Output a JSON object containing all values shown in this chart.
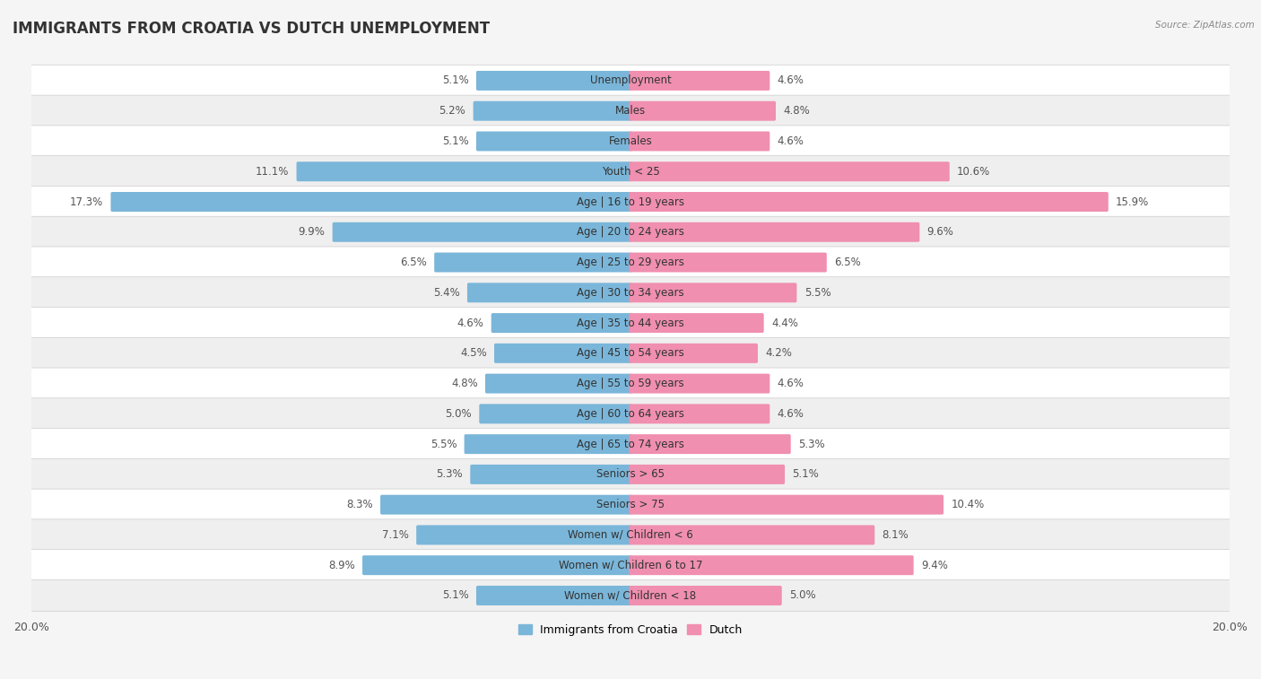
{
  "title": "IMMIGRANTS FROM CROATIA VS DUTCH UNEMPLOYMENT",
  "source": "Source: ZipAtlas.com",
  "categories": [
    "Unemployment",
    "Males",
    "Females",
    "Youth < 25",
    "Age | 16 to 19 years",
    "Age | 20 to 24 years",
    "Age | 25 to 29 years",
    "Age | 30 to 34 years",
    "Age | 35 to 44 years",
    "Age | 45 to 54 years",
    "Age | 55 to 59 years",
    "Age | 60 to 64 years",
    "Age | 65 to 74 years",
    "Seniors > 65",
    "Seniors > 75",
    "Women w/ Children < 6",
    "Women w/ Children 6 to 17",
    "Women w/ Children < 18"
  ],
  "croatia_values": [
    5.1,
    5.2,
    5.1,
    11.1,
    17.3,
    9.9,
    6.5,
    5.4,
    4.6,
    4.5,
    4.8,
    5.0,
    5.5,
    5.3,
    8.3,
    7.1,
    8.9,
    5.1
  ],
  "dutch_values": [
    4.6,
    4.8,
    4.6,
    10.6,
    15.9,
    9.6,
    6.5,
    5.5,
    4.4,
    4.2,
    4.6,
    4.6,
    5.3,
    5.1,
    10.4,
    8.1,
    9.4,
    5.0
  ],
  "croatia_color": "#7ab6d9",
  "dutch_color": "#f08faf",
  "row_colors": [
    "#ffffff",
    "#efefef"
  ],
  "background_color": "#f5f5f5",
  "xlim": 20.0,
  "legend_labels": [
    "Immigrants from Croatia",
    "Dutch"
  ],
  "title_fontsize": 12,
  "label_fontsize": 8.5,
  "category_fontsize": 8.5
}
